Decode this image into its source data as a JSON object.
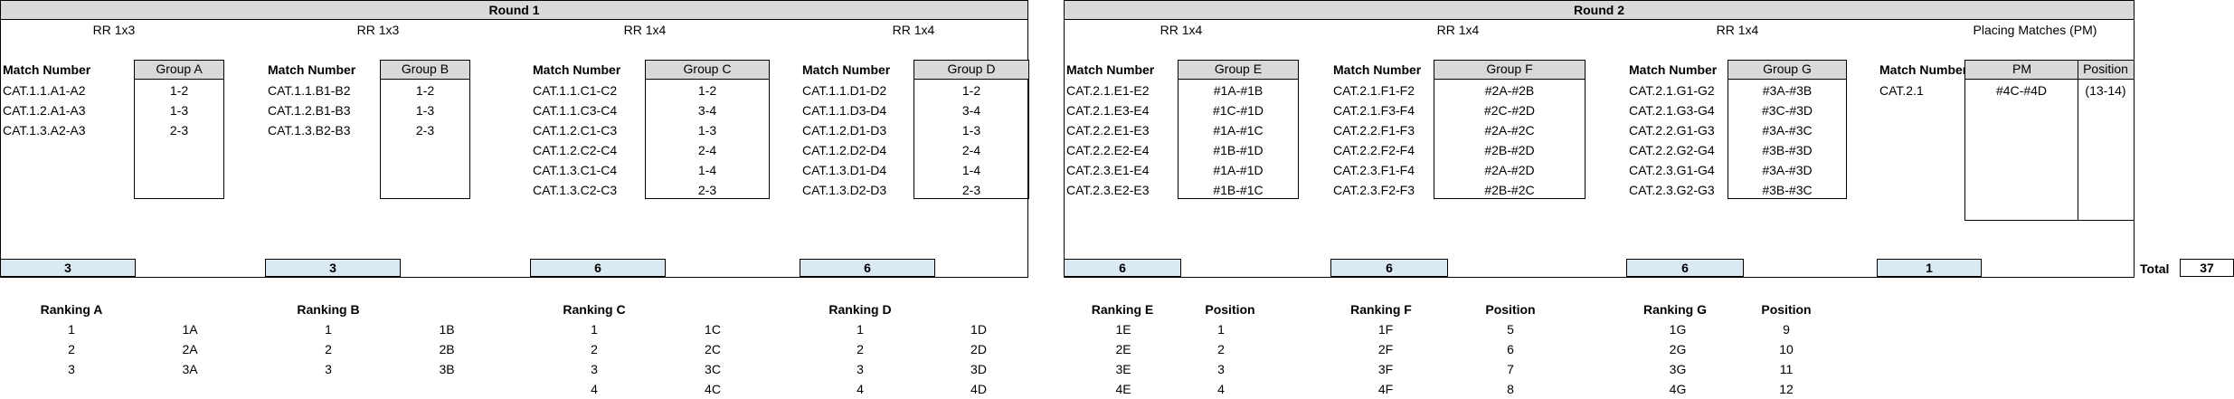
{
  "round1": {
    "title": "Round 1"
  },
  "round2": {
    "title": "Round 2"
  },
  "rr_labels": [
    "RR 1x3",
    "RR 1x3",
    "RR 1x4",
    "RR 1x4",
    "RR 1x4",
    "RR 1x4",
    "RR 1x4",
    "Placing Matches (PM)"
  ],
  "match_number_label": "Match Number",
  "groups": [
    {
      "name": "Group A",
      "matches": [
        "CAT.1.1.A1-A2",
        "CAT.1.2.A1-A3",
        "CAT.1.3.A2-A3"
      ],
      "pairs": [
        "1-2",
        "1-3",
        "2-3"
      ],
      "total": "3"
    },
    {
      "name": "Group B",
      "matches": [
        "CAT.1.1.B1-B2",
        "CAT.1.2.B1-B3",
        "CAT.1.3.B2-B3"
      ],
      "pairs": [
        "1-2",
        "1-3",
        "2-3"
      ],
      "total": "3"
    },
    {
      "name": "Group C",
      "matches": [
        "CAT.1.1.C1-C2",
        "CAT.1.1.C3-C4",
        "CAT.1.2.C1-C3",
        "CAT.1.2.C2-C4",
        "CAT.1.3.C1-C4",
        "CAT.1.3.C2-C3"
      ],
      "pairs": [
        "1-2",
        "3-4",
        "1-3",
        "2-4",
        "1-4",
        "2-3"
      ],
      "total": "6"
    },
    {
      "name": "Group D",
      "matches": [
        "CAT.1.1.D1-D2",
        "CAT.1.1.D3-D4",
        "CAT.1.2.D1-D3",
        "CAT.1.2.D2-D4",
        "CAT.1.3.D1-D4",
        "CAT.1.3.D2-D3"
      ],
      "pairs": [
        "1-2",
        "3-4",
        "1-3",
        "2-4",
        "1-4",
        "2-3"
      ],
      "total": "6"
    },
    {
      "name": "Group E",
      "matches": [
        "CAT.2.1.E1-E2",
        "CAT.2.1.E3-E4",
        "CAT.2.2.E1-E3",
        "CAT.2.2.E2-E4",
        "CAT.2.3.E1-E4",
        "CAT.2.3.E2-E3"
      ],
      "pairs": [
        "#1A-#1B",
        "#1C-#1D",
        "#1A-#1C",
        "#1B-#1D",
        "#1A-#1D",
        "#1B-#1C"
      ],
      "total": "6"
    },
    {
      "name": "Group F",
      "matches": [
        "CAT.2.1.F1-F2",
        "CAT.2.1.F3-F4",
        "CAT.2.2.F1-F3",
        "CAT.2.2.F2-F4",
        "CAT.2.3.F1-F4",
        "CAT.2.3.F2-F3"
      ],
      "pairs": [
        "#2A-#2B",
        "#2C-#2D",
        "#2A-#2C",
        "#2B-#2D",
        "#2A-#2D",
        "#2B-#2C"
      ],
      "total": "6"
    },
    {
      "name": "Group G",
      "matches": [
        "CAT.2.1.G1-G2",
        "CAT.2.1.G3-G4",
        "CAT.2.2.G1-G3",
        "CAT.2.2.G2-G4",
        "CAT.2.3.G1-G4",
        "CAT.2.3.G2-G3"
      ],
      "pairs": [
        "#3A-#3B",
        "#3C-#3D",
        "#3A-#3C",
        "#3B-#3D",
        "#3A-#3D",
        "#3B-#3C"
      ],
      "total": "6"
    }
  ],
  "placing": {
    "pm_label": "PM",
    "position_label": "Position",
    "match": "CAT.2.1",
    "pm": "#4C-#4D",
    "position": "(13-14)",
    "total": "1"
  },
  "grand_total": {
    "label": "Total",
    "value": "37"
  },
  "rankings_r1": [
    {
      "title": "Ranking A",
      "nums": [
        "1",
        "2",
        "3"
      ],
      "codes": [
        "1A",
        "2A",
        "3A"
      ]
    },
    {
      "title": "Ranking B",
      "nums": [
        "1",
        "2",
        "3"
      ],
      "codes": [
        "1B",
        "2B",
        "3B"
      ]
    },
    {
      "title": "Ranking C",
      "nums": [
        "1",
        "2",
        "3",
        "4"
      ],
      "codes": [
        "1C",
        "2C",
        "3C",
        "4C"
      ]
    },
    {
      "title": "Ranking D",
      "nums": [
        "1",
        "2",
        "3",
        "4"
      ],
      "codes": [
        "1D",
        "2D",
        "3D",
        "4D"
      ]
    }
  ],
  "rankings_r2": [
    {
      "title": "Ranking E",
      "codes": [
        "1E",
        "2E",
        "3E",
        "4E"
      ],
      "pos_label": "Position",
      "positions": [
        "1",
        "2",
        "3",
        "4"
      ]
    },
    {
      "title": "Ranking F",
      "codes": [
        "1F",
        "2F",
        "3F",
        "4F"
      ],
      "pos_label": "Position",
      "positions": [
        "5",
        "6",
        "7",
        "8"
      ]
    },
    {
      "title": "Ranking G",
      "codes": [
        "1G",
        "2G",
        "3G",
        "4G"
      ],
      "pos_label": "Position",
      "positions": [
        "9",
        "10",
        "11",
        "12"
      ]
    }
  ]
}
